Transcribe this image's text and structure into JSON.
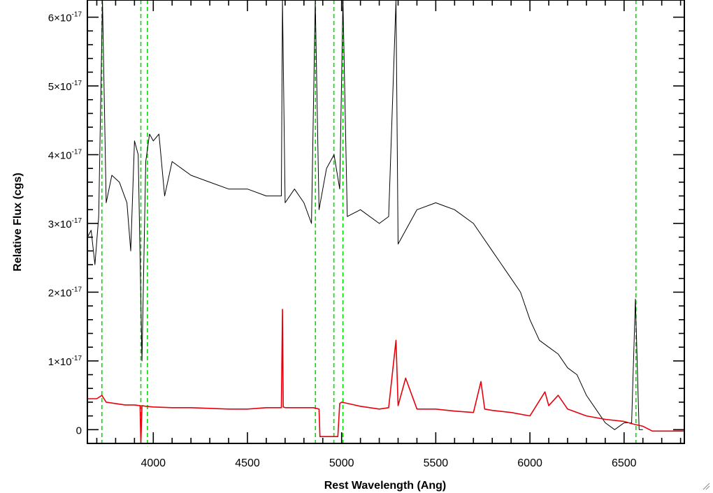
{
  "chart_data": {
    "type": "line",
    "xlabel": "Rest Wavelength (Ang)",
    "ylabel": "Relative Flux (cgs)",
    "xlim": [
      3650,
      6820
    ],
    "ylim": [
      -2e-18,
      6.25e-17
    ],
    "x_ticks": [
      {
        "value": 4000,
        "label": "4000"
      },
      {
        "value": 4500,
        "label": "4500"
      },
      {
        "value": 5000,
        "label": "5000"
      },
      {
        "value": 5500,
        "label": "5500"
      },
      {
        "value": 6000,
        "label": "6000"
      },
      {
        "value": 6500,
        "label": "6500"
      }
    ],
    "y_ticks": [
      {
        "value": 0,
        "base": "0",
        "exp": ""
      },
      {
        "value": 1e-17,
        "base": "1×10",
        "exp": "-17"
      },
      {
        "value": 2e-17,
        "base": "2×10",
        "exp": "-17"
      },
      {
        "value": 3e-17,
        "base": "3×10",
        "exp": "-17"
      },
      {
        "value": 4e-17,
        "base": "4×10",
        "exp": "-17"
      },
      {
        "value": 5e-17,
        "base": "5×10",
        "exp": "-17"
      },
      {
        "value": 6e-17,
        "base": "6×10",
        "exp": "-17"
      }
    ],
    "vlines": [
      3727,
      3934,
      3969,
      4861,
      4959,
      5007,
      6563
    ],
    "colors": {
      "spectrum": "#000000",
      "model": "#e8000b",
      "lines": "#00e000"
    },
    "series": [
      {
        "x": [
          3650,
          3670,
          3690,
          3710,
          3730,
          3750,
          3780,
          3820,
          3860,
          3880,
          3900,
          3920,
          3940,
          3960,
          3980,
          4000,
          4030,
          4060,
          4100,
          4150,
          4200,
          4300,
          4400,
          4500,
          4600,
          4650,
          4680,
          4686,
          4700,
          4750,
          4800,
          4840,
          4860,
          4880,
          4920,
          4960,
          4990,
          5007,
          5030,
          5100,
          5200,
          5250,
          5289,
          5300,
          5400,
          5500,
          5600,
          5700,
          5800,
          5850,
          5900,
          5950,
          6000,
          6050,
          6100,
          6150,
          6200,
          6250,
          6300,
          6350,
          6400,
          6450,
          6500,
          6540,
          6560,
          6580,
          6600
        ],
        "values": [
          2.8e-17,
          2.9e-17,
          2.4e-17,
          3.1e-17,
          6.5e-17,
          3.3e-17,
          3.7e-17,
          3.6e-17,
          3.3e-17,
          2.6e-17,
          4.2e-17,
          4e-17,
          1e-17,
          3.9e-17,
          4.3e-17,
          4.2e-17,
          4.3e-17,
          3.4e-17,
          3.9e-17,
          3.8e-17,
          3.7e-17,
          3.6e-17,
          3.5e-17,
          3.5e-17,
          3.4e-17,
          3.4e-17,
          3.4e-17,
          6.5e-17,
          3.3e-17,
          3.5e-17,
          3.3e-17,
          3e-17,
          6.5e-17,
          3.2e-17,
          3.8e-17,
          4e-17,
          3.5e-17,
          6.5e-17,
          3.1e-17,
          3.2e-17,
          3e-17,
          3.1e-17,
          6.5e-17,
          2.7e-17,
          3.2e-17,
          3.3e-17,
          3.2e-17,
          3e-17,
          2.6e-17,
          2.4e-17,
          2.2e-17,
          2e-17,
          1.6e-17,
          1.3e-17,
          1.2e-17,
          1.1e-17,
          9e-18,
          8e-18,
          5e-18,
          3e-18,
          1e-18,
          0.0,
          1e-18,
          1e-18,
          1.9e-17,
          0.0,
          0.0
        ]
      },
      {
        "x": [
          3650,
          3700,
          3727,
          3750,
          3800,
          3850,
          3900,
          3930,
          3934,
          3940,
          3960,
          4000,
          4100,
          4200,
          4300,
          4400,
          4500,
          4600,
          4680,
          4686,
          4690,
          4700,
          4800,
          4850,
          4880,
          4885,
          4980,
          4990,
          5000,
          5100,
          5200,
          5250,
          5289,
          5300,
          5340,
          5400,
          5500,
          5600,
          5700,
          5740,
          5760,
          5800,
          5900,
          6000,
          6080,
          6100,
          6150,
          6200,
          6300,
          6400,
          6500,
          6550,
          6600,
          6650,
          6820
        ],
        "values": [
          4.5e-18,
          4.5e-18,
          5e-18,
          4e-18,
          3.8e-18,
          3.6e-18,
          3.6e-18,
          3.5e-18,
          -3e-18,
          3.5e-18,
          3.4e-18,
          3.3e-18,
          3.2e-18,
          3.2e-18,
          3.1e-18,
          3e-18,
          3e-18,
          3.2e-18,
          3.2e-18,
          1.75e-17,
          3.3e-18,
          3.2e-18,
          3.2e-18,
          3.2e-18,
          3e-18,
          -1e-18,
          -1e-18,
          3.8e-18,
          4e-18,
          3.4e-18,
          3e-18,
          3.2e-18,
          1.3e-17,
          3.5e-18,
          7.5e-18,
          3e-18,
          3e-18,
          2.7e-18,
          2.5e-18,
          7e-18,
          3e-18,
          2.8e-18,
          2.5e-18,
          2e-18,
          5.5e-18,
          3.5e-18,
          5e-18,
          3e-18,
          2e-18,
          1.5e-18,
          1.2e-18,
          8e-19,
          5e-19,
          -2e-19,
          -2e-19
        ]
      }
    ]
  }
}
